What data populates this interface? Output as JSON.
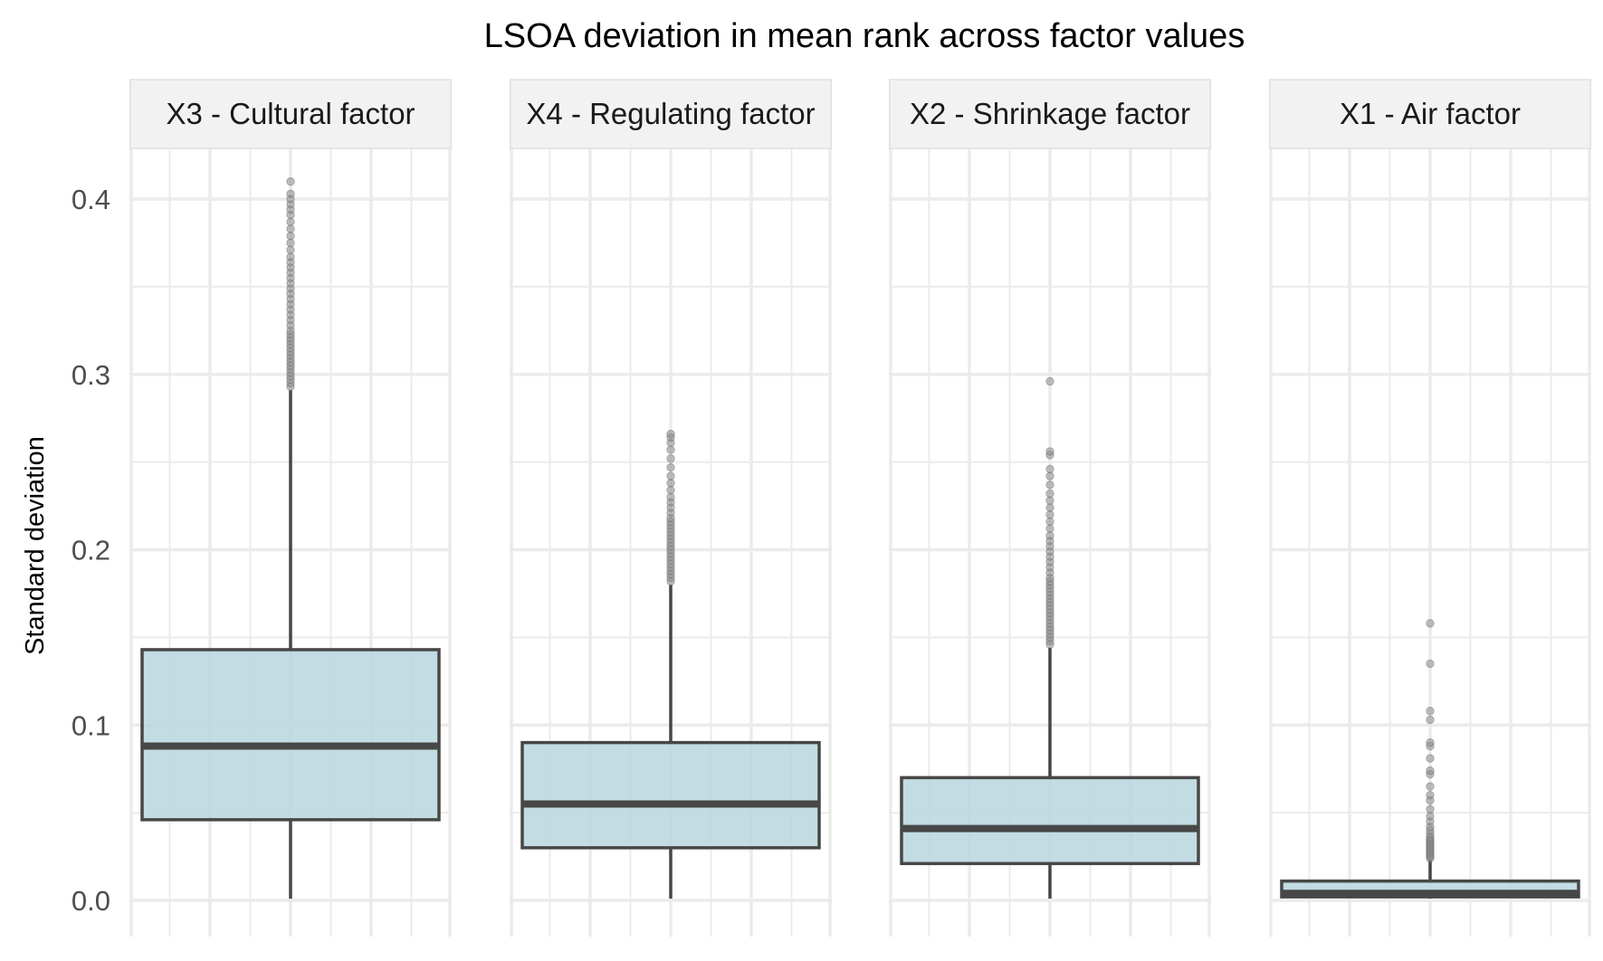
{
  "chart_data": {
    "type": "boxplot",
    "title": "LSOA deviation in mean rank across factor values",
    "ylabel": "Standard deviation",
    "xlabel": "",
    "ylim": [
      0,
      0.43
    ],
    "yticks": [
      0.0,
      0.1,
      0.2,
      0.3,
      0.4
    ],
    "ytick_labels": [
      "0.0",
      "0.1",
      "0.2",
      "0.3",
      "0.4"
    ],
    "grid": true,
    "legend": "none",
    "colors": {
      "box_fill": "#b9d6df",
      "box_stroke": "#474747",
      "outlier": "#8a8a8a",
      "grid": "#ebebeb",
      "strip_bg": "#f2f2f2",
      "strip_border": "#e0e0e0"
    },
    "panels": [
      {
        "label": "X3 - Cultural factor",
        "whisker_low": 0.001,
        "q1": 0.046,
        "median": 0.088,
        "q3": 0.143,
        "whisker_high": 0.291,
        "outliers": [
          0.293,
          0.295,
          0.297,
          0.299,
          0.301,
          0.303,
          0.305,
          0.307,
          0.309,
          0.311,
          0.313,
          0.315,
          0.317,
          0.319,
          0.321,
          0.323,
          0.325,
          0.328,
          0.331,
          0.334,
          0.337,
          0.34,
          0.343,
          0.346,
          0.349,
          0.352,
          0.355,
          0.358,
          0.361,
          0.364,
          0.367,
          0.371,
          0.375,
          0.379,
          0.383,
          0.387,
          0.391,
          0.394,
          0.397,
          0.4,
          0.403,
          0.41
        ]
      },
      {
        "label": "X4 - Regulating factor",
        "whisker_low": 0.001,
        "q1": 0.03,
        "median": 0.055,
        "q3": 0.09,
        "whisker_high": 0.18,
        "outliers": [
          0.182,
          0.184,
          0.186,
          0.188,
          0.19,
          0.192,
          0.194,
          0.196,
          0.198,
          0.2,
          0.202,
          0.204,
          0.206,
          0.208,
          0.21,
          0.212,
          0.214,
          0.216,
          0.218,
          0.221,
          0.224,
          0.227,
          0.23,
          0.234,
          0.238,
          0.242,
          0.247,
          0.252,
          0.257,
          0.261,
          0.264,
          0.266
        ]
      },
      {
        "label": "X2 - Shrinkage factor",
        "whisker_low": 0.001,
        "q1": 0.021,
        "median": 0.041,
        "q3": 0.07,
        "whisker_high": 0.144,
        "outliers": [
          0.146,
          0.148,
          0.15,
          0.152,
          0.154,
          0.156,
          0.158,
          0.16,
          0.162,
          0.164,
          0.166,
          0.168,
          0.17,
          0.172,
          0.174,
          0.176,
          0.178,
          0.18,
          0.182,
          0.184,
          0.187,
          0.19,
          0.193,
          0.196,
          0.199,
          0.202,
          0.205,
          0.208,
          0.212,
          0.216,
          0.22,
          0.224,
          0.228,
          0.232,
          0.237,
          0.242,
          0.246,
          0.254,
          0.256,
          0.296
        ]
      },
      {
        "label": "X1 - Air factor",
        "whisker_low": 0.001,
        "q1": 0.002,
        "median": 0.004,
        "q3": 0.011,
        "whisker_high": 0.023,
        "outliers": [
          0.024,
          0.025,
          0.026,
          0.027,
          0.028,
          0.029,
          0.03,
          0.031,
          0.032,
          0.033,
          0.034,
          0.035,
          0.036,
          0.038,
          0.04,
          0.042,
          0.045,
          0.048,
          0.052,
          0.057,
          0.06,
          0.065,
          0.072,
          0.074,
          0.081,
          0.088,
          0.09,
          0.103,
          0.108,
          0.135,
          0.158
        ]
      }
    ]
  }
}
